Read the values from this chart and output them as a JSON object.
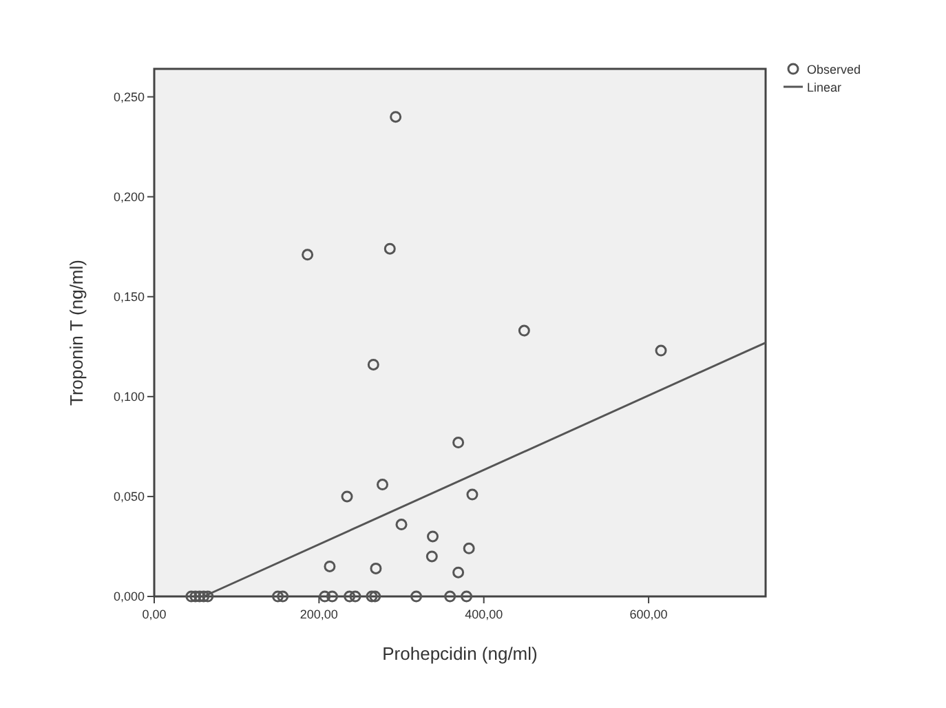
{
  "chart_data": {
    "type": "scatter",
    "xlabel": "Prohepcidin (ng/ml)",
    "ylabel": "Troponin T (ng/ml)",
    "xlim": [
      0,
      742
    ],
    "ylim": [
      0,
      0.264
    ],
    "xticks": [
      {
        "value": 0,
        "label": "0,00"
      },
      {
        "value": 200,
        "label": "200,00"
      },
      {
        "value": 400,
        "label": "400,00"
      },
      {
        "value": 600,
        "label": "600,00"
      }
    ],
    "yticks": [
      {
        "value": 0,
        "label": "0,000"
      },
      {
        "value": 0.05,
        "label": "0,050"
      },
      {
        "value": 0.1,
        "label": "0,100"
      },
      {
        "value": 0.15,
        "label": "0,150"
      },
      {
        "value": 0.2,
        "label": "0,200"
      },
      {
        "value": 0.25,
        "label": "0,250"
      }
    ],
    "grid": false,
    "legend": "top right",
    "marker": "circle",
    "series": [
      {
        "name": "Observed",
        "color": "#555555",
        "x": [
          293,
          186,
          286,
          266,
          369,
          234,
          277,
          386,
          300,
          338,
          337,
          382,
          369,
          213,
          269,
          449,
          615,
          45,
          50,
          55,
          60,
          65,
          150,
          156,
          207,
          216,
          237,
          244,
          264,
          268,
          318,
          359,
          379
        ],
        "values": [
          0.24,
          0.171,
          0.174,
          0.116,
          0.077,
          0.05,
          0.056,
          0.051,
          0.036,
          0.03,
          0.02,
          0.024,
          0.012,
          0.015,
          0.014,
          0.133,
          0.123,
          0,
          0,
          0,
          0,
          0,
          0,
          0,
          0,
          0,
          0,
          0,
          0,
          0,
          0,
          0,
          0
        ]
      },
      {
        "name": "Linear",
        "type": "line",
        "color": "#555555",
        "x": [
          60,
          742
        ],
        "values": [
          0,
          0.127
        ],
        "marker": "none",
        "line_style": "solid"
      }
    ]
  }
}
